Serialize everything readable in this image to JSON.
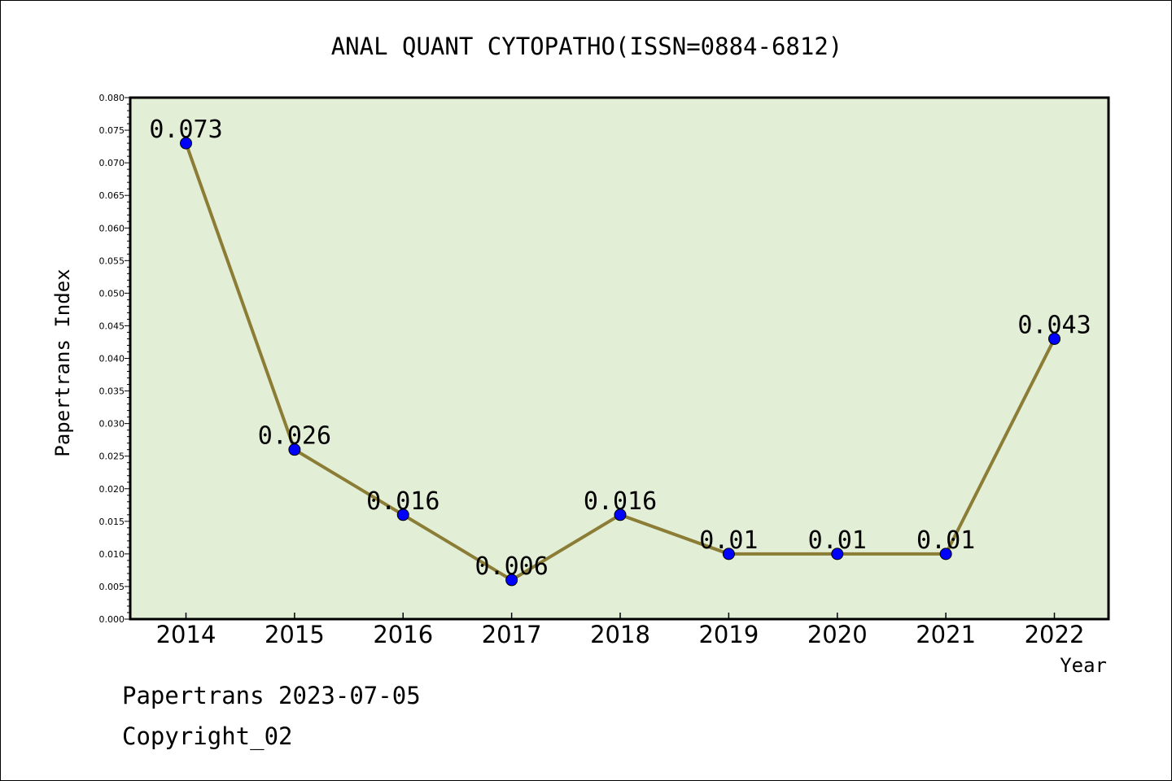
{
  "chart_data": {
    "type": "line",
    "title": "ANAL QUANT CYTOPATHO(ISSN=0884-6812)",
    "xlabel": "Year",
    "ylabel": "Papertrans Index",
    "categories": [
      "2014",
      "2015",
      "2016",
      "2017",
      "2018",
      "2019",
      "2020",
      "2021",
      "2022"
    ],
    "series": [
      {
        "values": [
          0.073,
          0.026,
          0.016,
          0.006,
          0.016,
          0.01,
          0.01,
          0.01,
          0.043
        ],
        "labels": [
          "0.073",
          "0.026",
          "0.016",
          "0.006",
          "0.016",
          "0.01",
          "0.01",
          "0.01",
          "0.043"
        ]
      }
    ],
    "ylim": [
      0,
      0.08
    ],
    "yticks": [
      "0.000",
      "0.005",
      "0.010",
      "0.015",
      "0.020",
      "0.025",
      "0.030",
      "0.035",
      "0.040",
      "0.045",
      "0.050",
      "0.055",
      "0.060",
      "0.065",
      "0.070",
      "0.075",
      "0.080"
    ],
    "grid": false,
    "colors": {
      "plot_background": "#e2efd6",
      "line": "#8b7d35",
      "marker": "#0000ff"
    }
  },
  "footer": {
    "credit": "Papertrans 2023-07-05",
    "copyright": "Copyright_02"
  }
}
